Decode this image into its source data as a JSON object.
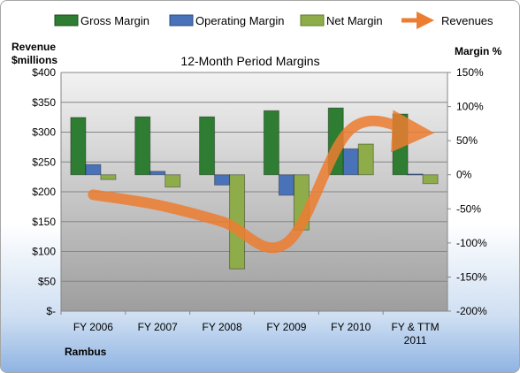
{
  "chart_data": {
    "type": "bar",
    "title": "12-Month Period Margins",
    "categories": [
      "FY 2006",
      "FY 2007",
      "FY 2008",
      "FY 2009",
      "FY 2010",
      "FY & TTM 2011"
    ],
    "left_axis": {
      "label_line1": "Revenue",
      "label_line2": "$millions",
      "range": [
        0,
        400
      ],
      "ticks": [
        "$-",
        "$50",
        "$100",
        "$150",
        "$200",
        "$250",
        "$300",
        "$350",
        "$400"
      ]
    },
    "right_axis": {
      "label": "Margin %",
      "range": [
        -200,
        150
      ],
      "ticks": [
        "-200%",
        "-150%",
        "-100%",
        "-50%",
        "0%",
        "50%",
        "100%",
        "150%"
      ]
    },
    "series": [
      {
        "name": "Gross Margin",
        "axis": "right",
        "values": [
          84,
          85,
          85,
          94,
          98,
          89
        ],
        "color": "#2e7d32"
      },
      {
        "name": "Operating Margin",
        "axis": "right",
        "values": [
          15,
          5,
          -15,
          -30,
          38,
          1
        ],
        "color": "#4a72b8"
      },
      {
        "name": "Net Margin",
        "axis": "right",
        "values": [
          -7,
          -18,
          -138,
          -81,
          45,
          -13
        ],
        "color": "#8ead4a"
      },
      {
        "name": "Revenues",
        "axis": "left",
        "type": "line",
        "values": [
          195,
          178,
          150,
          114,
          305,
          300
        ],
        "color": "#ed7d31"
      }
    ],
    "grid": true,
    "legend_position": "top",
    "footer": "Rambus"
  }
}
